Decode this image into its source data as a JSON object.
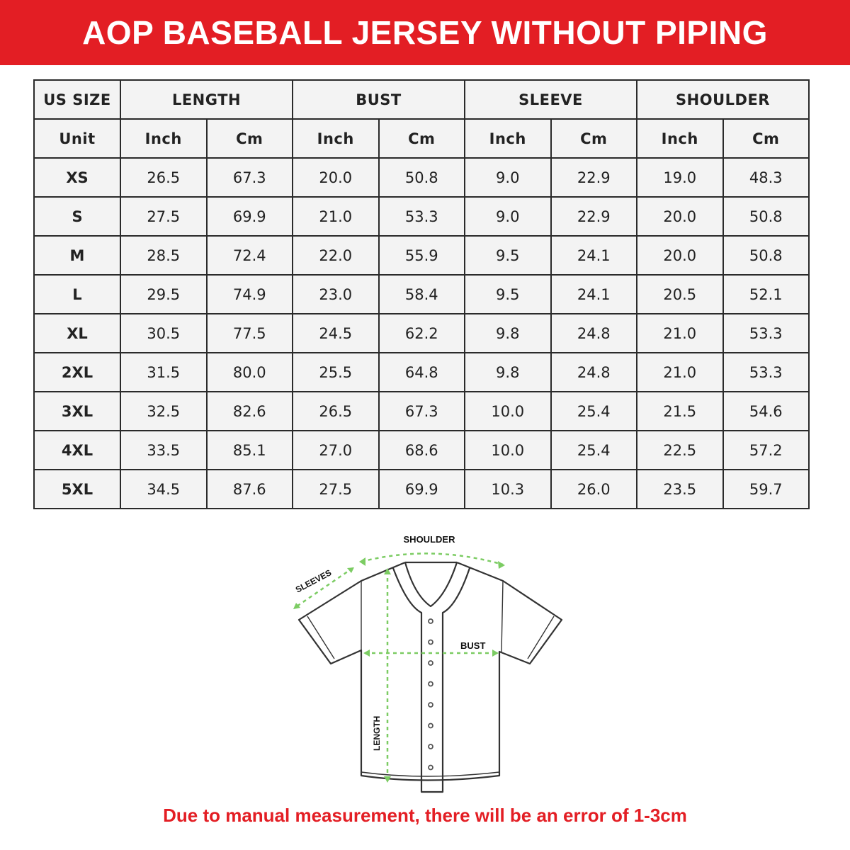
{
  "title": "AOP BASEBALL JERSEY WITHOUT PIPING",
  "table": {
    "group_headers": [
      "US SIZE",
      "LENGTH",
      "BUST",
      "SLEEVE",
      "SHOULDER"
    ],
    "unit_row": [
      "Unit",
      "Inch",
      "Cm",
      "Inch",
      "Cm",
      "Inch",
      "Cm",
      "Inch",
      "Cm"
    ],
    "rows": [
      [
        "XS",
        "26.5",
        "67.3",
        "20.0",
        "50.8",
        "9.0",
        "22.9",
        "19.0",
        "48.3"
      ],
      [
        "S",
        "27.5",
        "69.9",
        "21.0",
        "53.3",
        "9.0",
        "22.9",
        "20.0",
        "50.8"
      ],
      [
        "M",
        "28.5",
        "72.4",
        "22.0",
        "55.9",
        "9.5",
        "24.1",
        "20.0",
        "50.8"
      ],
      [
        "L",
        "29.5",
        "74.9",
        "23.0",
        "58.4",
        "9.5",
        "24.1",
        "20.5",
        "52.1"
      ],
      [
        "XL",
        "30.5",
        "77.5",
        "24.5",
        "62.2",
        "9.8",
        "24.8",
        "21.0",
        "53.3"
      ],
      [
        "2XL",
        "31.5",
        "80.0",
        "25.5",
        "64.8",
        "9.8",
        "24.8",
        "21.0",
        "53.3"
      ],
      [
        "3XL",
        "32.5",
        "82.6",
        "26.5",
        "67.3",
        "10.0",
        "25.4",
        "21.5",
        "54.6"
      ],
      [
        "4XL",
        "33.5",
        "85.1",
        "27.0",
        "68.6",
        "10.0",
        "25.4",
        "22.5",
        "57.2"
      ],
      [
        "5XL",
        "34.5",
        "87.6",
        "27.5",
        "69.9",
        "10.3",
        "26.0",
        "23.5",
        "59.7"
      ]
    ]
  },
  "diagram": {
    "labels": {
      "shoulder": "SHOULDER",
      "sleeves": "SLEEVES",
      "bust": "BUST",
      "length": "LENGTH"
    },
    "measure_color": "#7ccc63"
  },
  "footer_note": "Due to manual measurement, there will be an error of 1-3cm",
  "colors": {
    "brand_red": "#e31e24"
  }
}
